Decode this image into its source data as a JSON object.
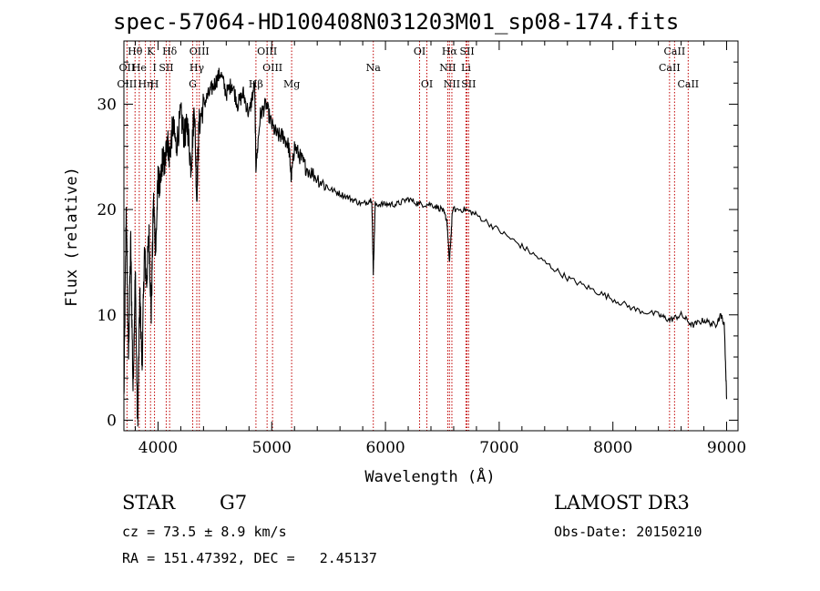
{
  "chart_data": {
    "type": "line",
    "title": "spec-57064-HD100408N031203M01_sp08-174.fits",
    "xlabel": "Wavelength (Å)",
    "ylabel": "Flux (relative)",
    "xlim": [
      3700,
      9100
    ],
    "ylim": [
      -1,
      36
    ],
    "xticks": [
      4000,
      5000,
      6000,
      7000,
      8000,
      9000
    ],
    "yticks": [
      0,
      10,
      20,
      30
    ],
    "spectrum": {
      "x": [
        3700,
        3720,
        3740,
        3760,
        3780,
        3800,
        3820,
        3840,
        3860,
        3880,
        3900,
        3920,
        3940,
        3960,
        3980,
        4000,
        4020,
        4040,
        4060,
        4080,
        4100,
        4130,
        4160,
        4200,
        4230,
        4260,
        4290,
        4320,
        4340,
        4360,
        4400,
        4450,
        4500,
        4550,
        4600,
        4650,
        4700,
        4750,
        4800,
        4850,
        4861,
        4900,
        4950,
        5000,
        5050,
        5100,
        5150,
        5172,
        5200,
        5250,
        5300,
        5400,
        5500,
        5600,
        5700,
        5800,
        5880,
        5893,
        5910,
        6000,
        6100,
        6200,
        6300,
        6400,
        6500,
        6540,
        6563,
        6590,
        6700,
        6800,
        7000,
        7200,
        7400,
        7600,
        7800,
        8000,
        8200,
        8400,
        8500,
        8600,
        8700,
        8800,
        8900,
        8950,
        8980,
        9000
      ],
      "y": [
        2,
        20,
        6,
        17,
        3,
        14,
        -1,
        12,
        5,
        16,
        13,
        18,
        10,
        21,
        16,
        23,
        22,
        25,
        24,
        27,
        25,
        28,
        26,
        29,
        27,
        28,
        24,
        30,
        21,
        28,
        30,
        31,
        32,
        33,
        31,
        32,
        30,
        31,
        29,
        32,
        24,
        29,
        30,
        28,
        27,
        27,
        26,
        23,
        26,
        25,
        24,
        23,
        22,
        21.5,
        21,
        20.5,
        21,
        14,
        20.5,
        20.5,
        20.5,
        21,
        20.5,
        20.5,
        20,
        19,
        15,
        20,
        20,
        19.5,
        18,
        16.5,
        15,
        13.5,
        12.5,
        11.5,
        10.5,
        10,
        9.5,
        10,
        9,
        9.5,
        9,
        10,
        9,
        2
      ]
    },
    "lines": [
      {
        "label": "Hθ",
        "wave": 3798,
        "row": 0
      },
      {
        "label": "OII",
        "wave": 3727,
        "row": 1
      },
      {
        "label": "OIII",
        "wave": 3727,
        "row": 2
      },
      {
        "label": "He",
        "wave": 3835,
        "row": 1
      },
      {
        "label": "Hη",
        "wave": 3889,
        "row": 2
      },
      {
        "label": "K",
        "wave": 3934,
        "row": 0
      },
      {
        "label": "H",
        "wave": 3969,
        "row": 2
      },
      {
        "label": "I",
        "wave": 3970,
        "row": 1
      },
      {
        "label": "SII",
        "wave": 4072,
        "row": 1
      },
      {
        "label": "Hδ",
        "wave": 4102,
        "row": 0
      },
      {
        "label": "OIII",
        "wave": 4363,
        "row": 0
      },
      {
        "label": "Hγ",
        "wave": 4341,
        "row": 1
      },
      {
        "label": "G",
        "wave": 4305,
        "row": 2
      },
      {
        "label": "Hβ",
        "wave": 4861,
        "row": 2
      },
      {
        "label": "OIII",
        "wave": 4959,
        "row": 0
      },
      {
        "label": "OIII",
        "wave": 5007,
        "row": 1
      },
      {
        "label": "Mg",
        "wave": 5175,
        "row": 2
      },
      {
        "label": "Na",
        "wave": 5893,
        "row": 1
      },
      {
        "label": "OI",
        "wave": 6300,
        "row": 0
      },
      {
        "label": "OI",
        "wave": 6364,
        "row": 2
      },
      {
        "label": "Hα",
        "wave": 6563,
        "row": 0
      },
      {
        "label": "NII",
        "wave": 6548,
        "row": 1
      },
      {
        "label": "NII",
        "wave": 6584,
        "row": 2
      },
      {
        "label": "SII",
        "wave": 6717,
        "row": 0
      },
      {
        "label": "Li",
        "wave": 6708,
        "row": 1
      },
      {
        "label": "SII",
        "wave": 6731,
        "row": 2
      },
      {
        "label": "CaII",
        "wave": 8498,
        "row": 1
      },
      {
        "label": "CaII",
        "wave": 8542,
        "row": 0
      },
      {
        "label": "CaII",
        "wave": 8662,
        "row": 2
      }
    ],
    "grid": false,
    "legend": "none"
  },
  "info": {
    "class": "STAR",
    "subclass": "G7",
    "survey": "LAMOST DR3",
    "cz": "cz = 73.5 ± 8.9 km/s",
    "obs_date": "Obs-Date: 20150210",
    "coords": "RA = 151.47392, DEC =   2.45137"
  },
  "colors": {
    "spectrum": "#000000",
    "line_marker": "#c00000",
    "axes": "#000000"
  }
}
